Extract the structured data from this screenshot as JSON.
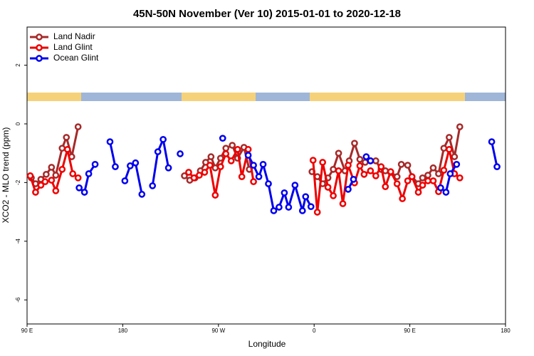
{
  "chart_data": {
    "type": "line",
    "title": "45N-50N November (Ver 10)   2015-01-01 to 2020-12-18",
    "xlabel": "Longitude",
    "ylabel": "XCO2 - MLO trend (ppm)",
    "xlim": [
      90,
      540
    ],
    "ylim": [
      -6.82,
      3.3
    ],
    "xticks": [
      {
        "value": 90,
        "label": "90 E"
      },
      {
        "value": 180,
        "label": "180"
      },
      {
        "value": 270,
        "label": "90 W"
      },
      {
        "value": 360,
        "label": "0"
      },
      {
        "value": 450,
        "label": "90 E"
      },
      {
        "value": 540,
        "label": "180"
      }
    ],
    "yticks": [
      -6,
      -4,
      -2,
      0,
      2
    ],
    "legend": "top-left",
    "series": [
      {
        "name": "Land Nadir",
        "color": "#a52a2a",
        "x": [
          94,
          98,
          103,
          108,
          113,
          117,
          123,
          127,
          132,
          138,
          null,
          238,
          243,
          248,
          253,
          258,
          263,
          267,
          272,
          277,
          283,
          288,
          294,
          299,
          null,
          358,
          363,
          368,
          373,
          378,
          383,
          389,
          393,
          398,
          403,
          408,
          413,
          418,
          423,
          427,
          432,
          438,
          442,
          448,
          452,
          458,
          462,
          467,
          472,
          477,
          482,
          487,
          492,
          497
        ],
        "values": [
          -1.84,
          -2.04,
          -1.89,
          -1.72,
          -1.48,
          -1.75,
          -0.83,
          -0.46,
          -1.12,
          -0.1,
          null,
          -1.77,
          -1.92,
          -1.84,
          -1.6,
          -1.31,
          -1.12,
          -1.5,
          -1.17,
          -0.83,
          -0.73,
          -1.17,
          -0.8,
          -1.55,
          null,
          -1.63,
          -1.8,
          -2.04,
          -1.84,
          -1.55,
          -1.0,
          -1.6,
          -1.26,
          -0.66,
          -1.21,
          -1.31,
          -1.26,
          -1.26,
          -1.55,
          -1.6,
          -1.65,
          -1.8,
          -1.38,
          -1.41,
          -1.8,
          -2.04,
          -1.84,
          -1.75,
          -1.5,
          -1.7,
          -0.83,
          -0.46,
          -1.12,
          -0.1
        ]
      },
      {
        "name": "Land Glint",
        "color": "#ee0000",
        "x": [
          93,
          98,
          103,
          107,
          113,
          117,
          123,
          128,
          133,
          138,
          null,
          242,
          247,
          252,
          257,
          262,
          267,
          272,
          277,
          282,
          288,
          292,
          298,
          303,
          null,
          359,
          363,
          368,
          373,
          378,
          383,
          387,
          392,
          398,
          403,
          407,
          413,
          418,
          423,
          427,
          432,
          438,
          443,
          448,
          452,
          458,
          462,
          467,
          472,
          477,
          482,
          487,
          492,
          497
        ],
        "values": [
          -1.77,
          -2.33,
          -2.09,
          -1.97,
          -1.92,
          -2.28,
          -1.55,
          -0.87,
          -1.7,
          -1.84,
          null,
          -1.65,
          -1.84,
          -1.75,
          -1.65,
          -1.41,
          -2.43,
          -1.46,
          -1.02,
          -1.26,
          -0.87,
          -1.8,
          -0.87,
          -1.97,
          null,
          -1.24,
          -3.01,
          -1.31,
          -2.16,
          -2.45,
          -1.6,
          -2.72,
          -1.41,
          -2.01,
          -1.43,
          -1.72,
          -1.6,
          -1.77,
          -1.46,
          -2.14,
          -1.63,
          -2.04,
          -2.55,
          -1.94,
          -1.8,
          -2.33,
          -2.09,
          -1.94,
          -1.94,
          -2.31,
          -1.58,
          -0.87,
          -1.7,
          -1.84
        ]
      },
      {
        "name": "Ocean Glint",
        "color": "#0000ee",
        "x": [
          139,
          144,
          148,
          154,
          null,
          168,
          173,
          null,
          182,
          187,
          192,
          198,
          null,
          208,
          213,
          218,
          223,
          null,
          234,
          null,
          274,
          null,
          298,
          303,
          308,
          312,
          317,
          322,
          327,
          332,
          336,
          342,
          349,
          352,
          357,
          null,
          392,
          397,
          null,
          409,
          413,
          null,
          479,
          484,
          488,
          494,
          null,
          527,
          532
        ],
        "values": [
          -2.18,
          -2.33,
          -1.7,
          -1.38,
          null,
          -0.61,
          -1.46,
          null,
          -1.94,
          -1.43,
          -1.33,
          -2.4,
          null,
          -2.11,
          -0.95,
          -0.53,
          -1.5,
          null,
          -1.02,
          null,
          -0.49,
          null,
          -1.07,
          -1.41,
          -1.8,
          -1.38,
          -2.04,
          -2.96,
          -2.84,
          -2.35,
          -2.84,
          -2.09,
          -2.96,
          -2.48,
          -2.82,
          null,
          -2.23,
          -1.89,
          null,
          -1.12,
          -1.26,
          null,
          -2.18,
          -2.33,
          -1.7,
          -1.38,
          null,
          -0.61,
          -1.46
        ]
      }
    ]
  }
}
